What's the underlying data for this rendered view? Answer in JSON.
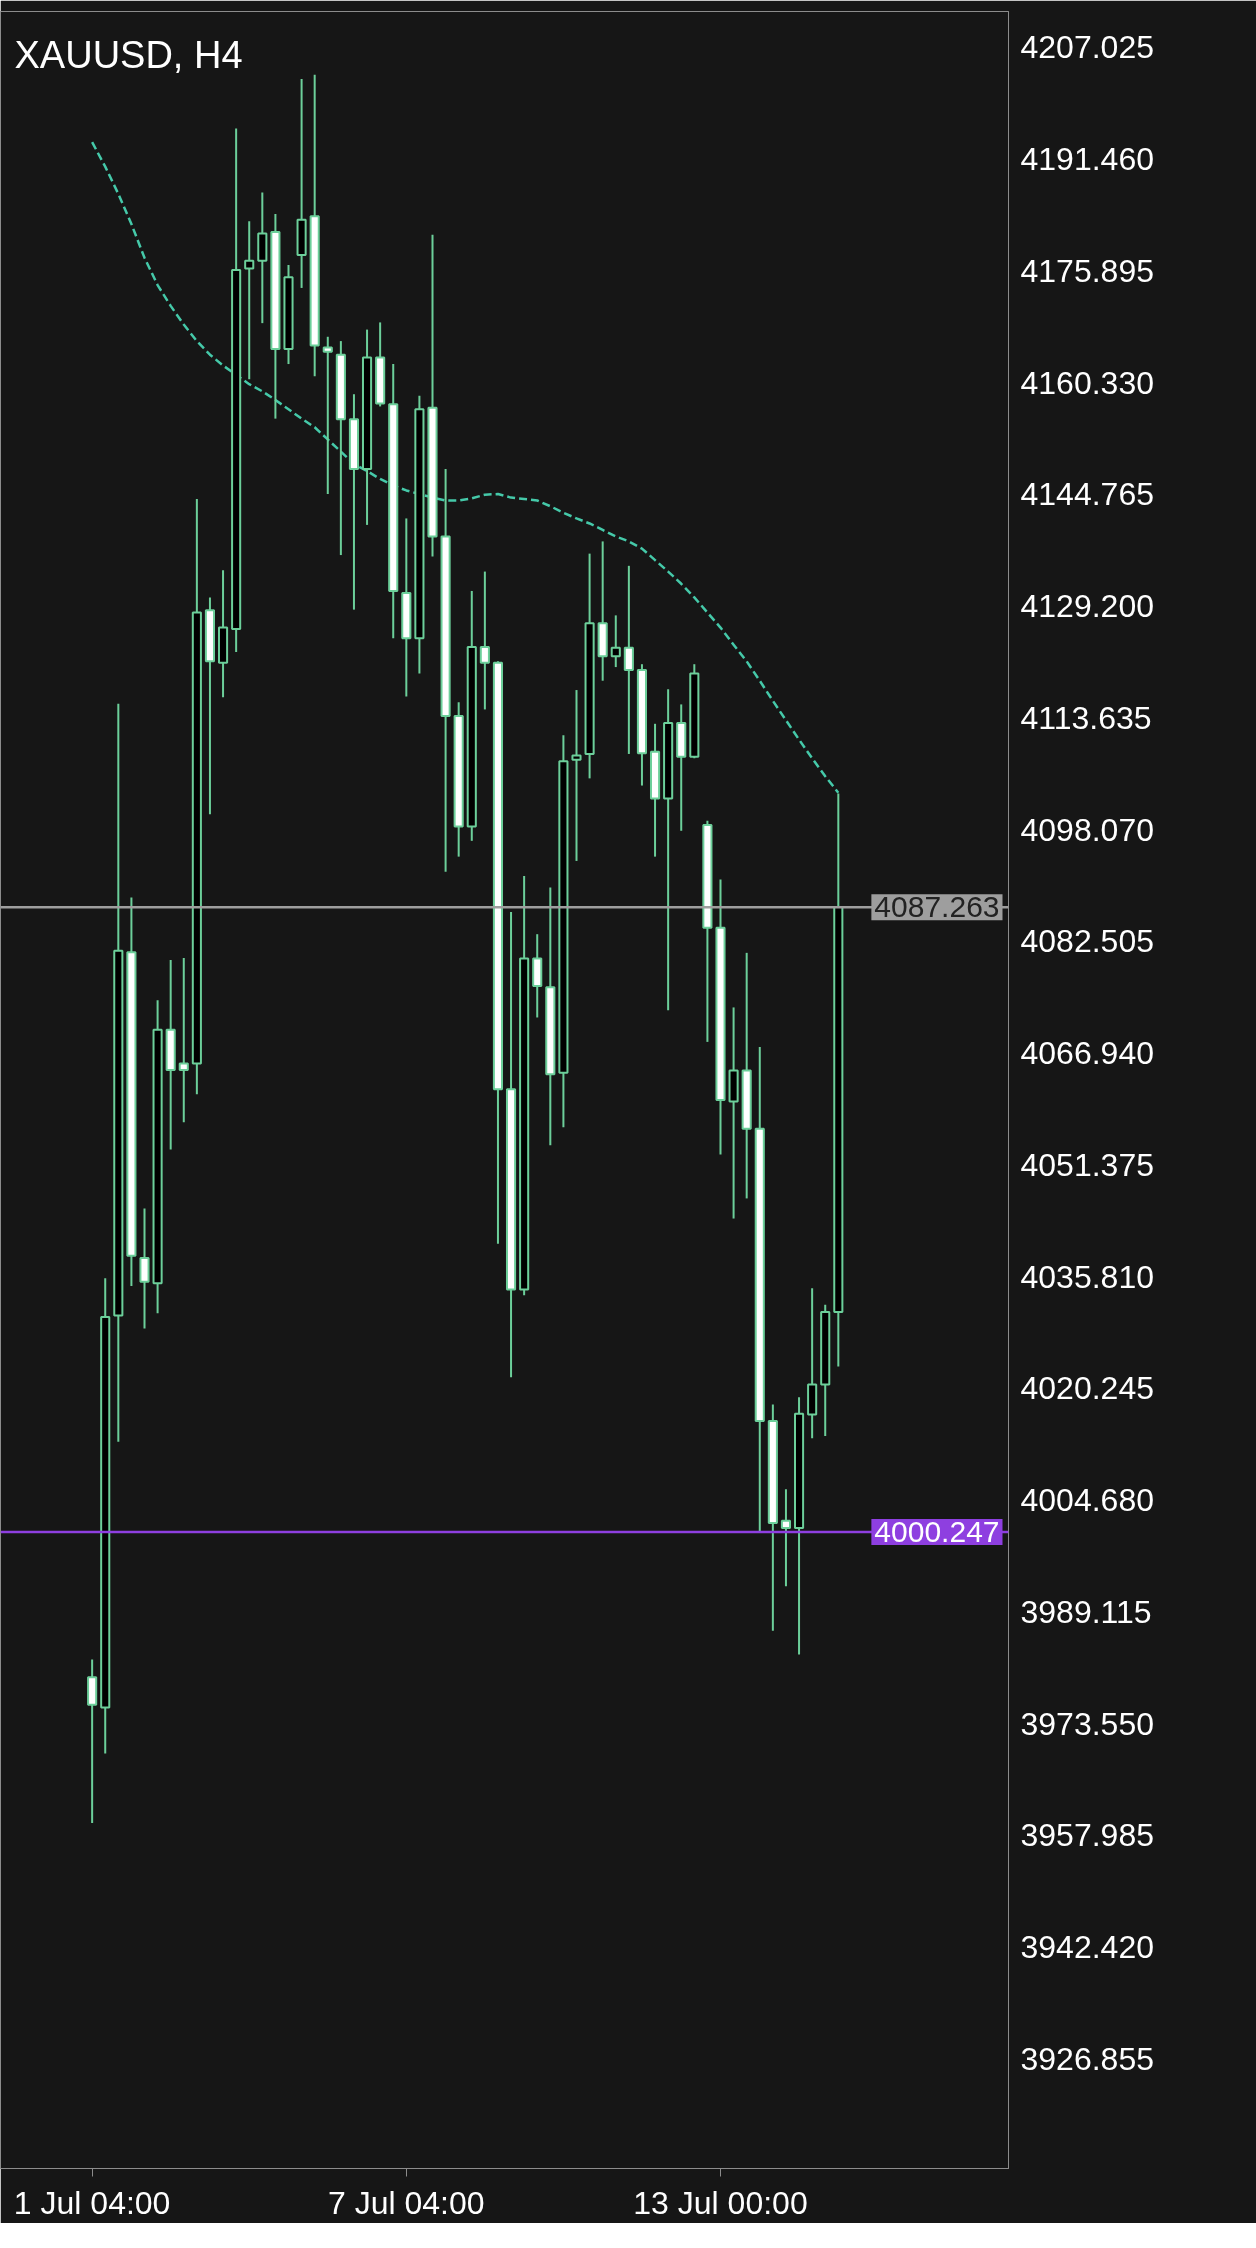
{
  "chart_data": {
    "type": "candlestick",
    "title": "XAUUSD, H4",
    "categories": [
      "1 Jul 04:00",
      null,
      null,
      null,
      null,
      null,
      null,
      null,
      null,
      null,
      null,
      null,
      null,
      null,
      null,
      null,
      null,
      null,
      null,
      null,
      null,
      null,
      null,
      null,
      "7 Jul 04:00",
      null,
      null,
      null,
      null,
      null,
      null,
      null,
      null,
      null,
      null,
      null,
      null,
      null,
      null,
      null,
      null,
      null,
      null,
      null,
      null,
      null,
      null,
      null,
      "13 Jul 00:00",
      null,
      null,
      null,
      null,
      null,
      null,
      null,
      null,
      null
    ],
    "ylim": [
      3911.6,
      4212
    ],
    "yticks": [
      4207.025,
      {
        "value": 4191.46,
        "label": "4191.460"
      },
      4175.895,
      {
        "value": 4160.33,
        "label": "4160.330"
      },
      4144.765,
      {
        "value": 4129.2,
        "label": "4129.200"
      },
      4113.635,
      {
        "value": 4098.07,
        "label": "4098.070"
      },
      4082.505,
      {
        "value": 4066.94,
        "label": "4066.940"
      },
      4051.375,
      {
        "value": 4035.81,
        "label": "4035.810"
      },
      4020.245,
      {
        "value": 4004.68,
        "label": "4004.680"
      },
      3989.115,
      {
        "value": 3973.55,
        "label": "3973.550"
      },
      3957.985,
      {
        "value": 3942.42,
        "label": "3942.420"
      },
      3926.855
    ],
    "grid": false,
    "color": "#6ccf9a",
    "colors": [
      "#ffffff",
      "#000000",
      "#000000",
      "#ffffff",
      "#ffffff",
      "#000000",
      "#ffffff",
      "#ffffff",
      "#000000",
      "#ffffff",
      "#000000",
      "#000000",
      "#000000",
      "#000000",
      "#ffffff",
      "#000000",
      "#000000",
      "#ffffff",
      "#ffffff",
      "#ffffff",
      "#ffffff",
      "#000000",
      "#ffffff",
      "#ffffff",
      "#ffffff",
      "#000000",
      "#ffffff",
      "#ffffff",
      "#ffffff",
      "#000000",
      "#ffffff",
      "#ffffff",
      "#ffffff",
      "#000000",
      "#ffffff",
      "#ffffff",
      "#000000",
      "#000000",
      "#000000",
      "#ffffff",
      "#000000",
      "#ffffff",
      "#ffffff",
      "#ffffff",
      "#000000",
      "#ffffff",
      "#000000",
      "#ffffff",
      "#ffffff",
      "#000000",
      "#ffffff",
      "#ffffff",
      "#ffffff",
      "#ffffff",
      "#000000",
      "#000000",
      "#000000",
      "#000000"
    ],
    "ohlc": [
      [
        3980.0,
        3982.5,
        3959.7,
        3976.2
      ],
      [
        3975.8,
        4035.6,
        3969.4,
        4030.2
      ],
      [
        4030.4,
        4115.6,
        4012.8,
        4081.2
      ],
      [
        4081.0,
        4088.6,
        4034.5,
        4038.7
      ],
      [
        4038.4,
        4045.3,
        4028.6,
        4035.1
      ],
      [
        4034.9,
        4074.3,
        4030.7,
        4070.2
      ],
      [
        4070.2,
        4079.9,
        4053.5,
        4064.6
      ],
      [
        4065.5,
        4080.2,
        4057.3,
        4064.6
      ],
      [
        4065.5,
        4144.1,
        4061.2,
        4128.3
      ],
      [
        4128.6,
        4130.4,
        4100.2,
        4121.5
      ],
      [
        4121.3,
        4134.2,
        4116.5,
        4126.2
      ],
      [
        4126.0,
        4195.7,
        4122.8,
        4176.0
      ],
      [
        4176.2,
        4182.8,
        4160.8,
        4177.3
      ],
      [
        4177.3,
        4186.8,
        4168.6,
        4181.1
      ],
      [
        4181.3,
        4183.8,
        4155.3,
        4165.0
      ],
      [
        4165.0,
        4176.7,
        4162.9,
        4175.0
      ],
      [
        4178.1,
        4202.6,
        4173.5,
        4183.0
      ],
      [
        4183.5,
        4203.2,
        4161.2,
        4165.5
      ],
      [
        4165.2,
        4166.7,
        4144.8,
        4164.6
      ],
      [
        4164.2,
        4166.1,
        4136.3,
        4155.2
      ],
      [
        4155.2,
        4158.7,
        4128.7,
        4148.3
      ],
      [
        4148.3,
        4167.7,
        4140.5,
        4163.8
      ],
      [
        4163.8,
        4168.7,
        4157.0,
        4157.4
      ],
      [
        4157.3,
        4162.9,
        4124.7,
        4131.3
      ],
      [
        4131.0,
        4141.4,
        4116.6,
        4124.7
      ],
      [
        4124.7,
        4158.5,
        4119.8,
        4156.6
      ],
      [
        4156.8,
        4180.9,
        4136.1,
        4138.9
      ],
      [
        4138.9,
        4148.3,
        4092.2,
        4113.9
      ],
      [
        4113.9,
        4115.8,
        4094.3,
        4098.5
      ],
      [
        4098.5,
        4131.3,
        4096.5,
        4123.5
      ],
      [
        4123.5,
        4134.0,
        4114.8,
        4121.3
      ],
      [
        4121.3,
        4121.5,
        4040.4,
        4061.9
      ],
      [
        4061.9,
        4086.6,
        4021.8,
        4034.0
      ],
      [
        4034.0,
        4091.6,
        4033.2,
        4080.1
      ],
      [
        4080.1,
        4083.5,
        4071.9,
        4076.3
      ],
      [
        4076.1,
        4090.0,
        4054.1,
        4064.0
      ],
      [
        4064.2,
        4111.2,
        4056.6,
        4107.6
      ],
      [
        4107.8,
        4117.5,
        4093.7,
        4108.4
      ],
      [
        4108.6,
        4136.5,
        4105.2,
        4126.8
      ],
      [
        4126.8,
        4138.2,
        4118.8,
        4122.2
      ],
      [
        4122.2,
        4127.9,
        4120.7,
        4123.4
      ],
      [
        4123.4,
        4134.8,
        4108.6,
        4120.3
      ],
      [
        4120.3,
        4121.1,
        4104.2,
        4108.7
      ],
      [
        4108.9,
        4112.8,
        4094.3,
        4102.4
      ],
      [
        4102.4,
        4117.6,
        4072.9,
        4112.9
      ],
      [
        4112.9,
        4115.5,
        4097.9,
        4108.2
      ],
      [
        4108.2,
        4121.1,
        4108.0,
        4119.8
      ],
      [
        4098.7,
        4099.3,
        4068.5,
        4084.4
      ],
      [
        4084.4,
        4091.1,
        4052.8,
        4060.4
      ],
      [
        4060.2,
        4073.3,
        4043.9,
        4064.5
      ],
      [
        4064.5,
        4080.9,
        4046.7,
        4056.4
      ],
      [
        4056.4,
        4067.8,
        4000.4,
        4015.7
      ],
      [
        4015.7,
        4018.0,
        3986.5,
        4001.5
      ],
      [
        4001.8,
        4006.2,
        3992.7,
        4000.8
      ],
      [
        4000.8,
        4019.0,
        3983.2,
        4016.7
      ],
      [
        4016.6,
        4034.2,
        4013.3,
        4020.8
      ],
      [
        4020.8,
        4031.9,
        4013.6,
        4030.9
      ],
      [
        4030.9,
        4103.1,
        4023.3,
        4087.3
      ]
    ],
    "series": [
      {
        "type": "line",
        "color": "#45c9a9",
        "line_style": "dashed",
        "values": [
          4193.8,
          4190.4,
          4186.6,
          4182.4,
          4177.7,
          4173.9,
          4171.0,
          4168.4,
          4166.1,
          4164.2,
          4162.7,
          4161.4,
          4160.1,
          4159.1,
          4157.9,
          4156.6,
          4155.3,
          4154.1,
          4152.4,
          4150.7,
          4149.0,
          4148.0,
          4146.9,
          4146.0,
          4145.3,
          4144.8,
          4144.3,
          4143.9,
          4143.9,
          4144.2,
          4144.7,
          4144.8,
          4144.3,
          4144.1,
          4143.9,
          4143.1,
          4142.2,
          4141.4,
          4140.7,
          4139.8,
          4138.9,
          4138.2,
          4137.2,
          4135.6,
          4134.0,
          4132.3,
          4130.4,
          4128.3,
          4126.2,
          4123.8,
          4121.5,
          4118.8,
          4116.0,
          4113.3,
          4110.6,
          4108.0,
          4105.5,
          4103.2
        ]
      }
    ],
    "ref_lines": [
      {
        "axis": "y",
        "value": 4087.263,
        "label": "4087.263",
        "color": "#9e9e9e"
      },
      {
        "axis": "y",
        "value": 4000.247,
        "label": "4000.247",
        "color": "#8e3fe0"
      }
    ]
  }
}
